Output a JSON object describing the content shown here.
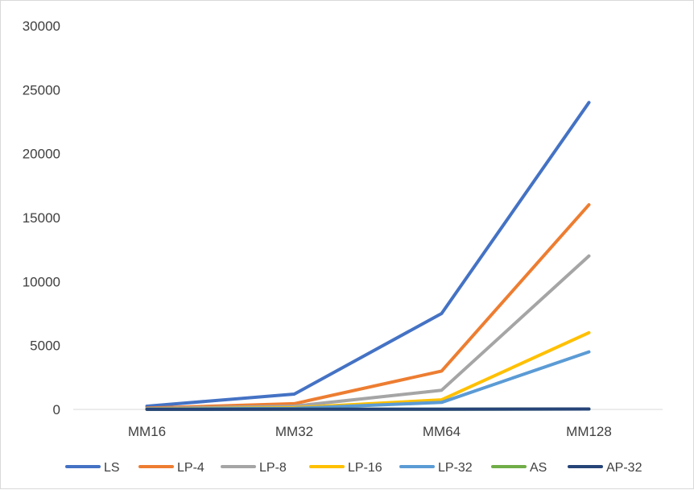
{
  "chart_data": {
    "type": "line",
    "title": "",
    "xlabel": "",
    "ylabel": "",
    "categories": [
      "MM16",
      "MM32",
      "MM64",
      "MM128"
    ],
    "ylim": [
      0,
      30000
    ],
    "yticks": [
      0,
      5000,
      10000,
      15000,
      20000,
      25000,
      30000
    ],
    "grid": false,
    "legend_position": "bottom",
    "series": [
      {
        "name": "LS",
        "color": "#4472C4",
        "values": [
          250,
          1200,
          7500,
          24000
        ]
      },
      {
        "name": "LP-4",
        "color": "#ED7D31",
        "values": [
          100,
          450,
          3000,
          16000
        ]
      },
      {
        "name": "LP-8",
        "color": "#A5A5A5",
        "values": [
          60,
          250,
          1500,
          12000
        ]
      },
      {
        "name": "LP-16",
        "color": "#FFC000",
        "values": [
          30,
          130,
          750,
          6000
        ]
      },
      {
        "name": "LP-32",
        "color": "#5B9BD5",
        "values": [
          20,
          80,
          550,
          4500
        ]
      },
      {
        "name": "AS",
        "color": "#70AD47",
        "values": [
          5,
          10,
          20,
          30
        ]
      },
      {
        "name": "AP-32",
        "color": "#264478",
        "values": [
          5,
          10,
          20,
          30
        ]
      }
    ]
  }
}
